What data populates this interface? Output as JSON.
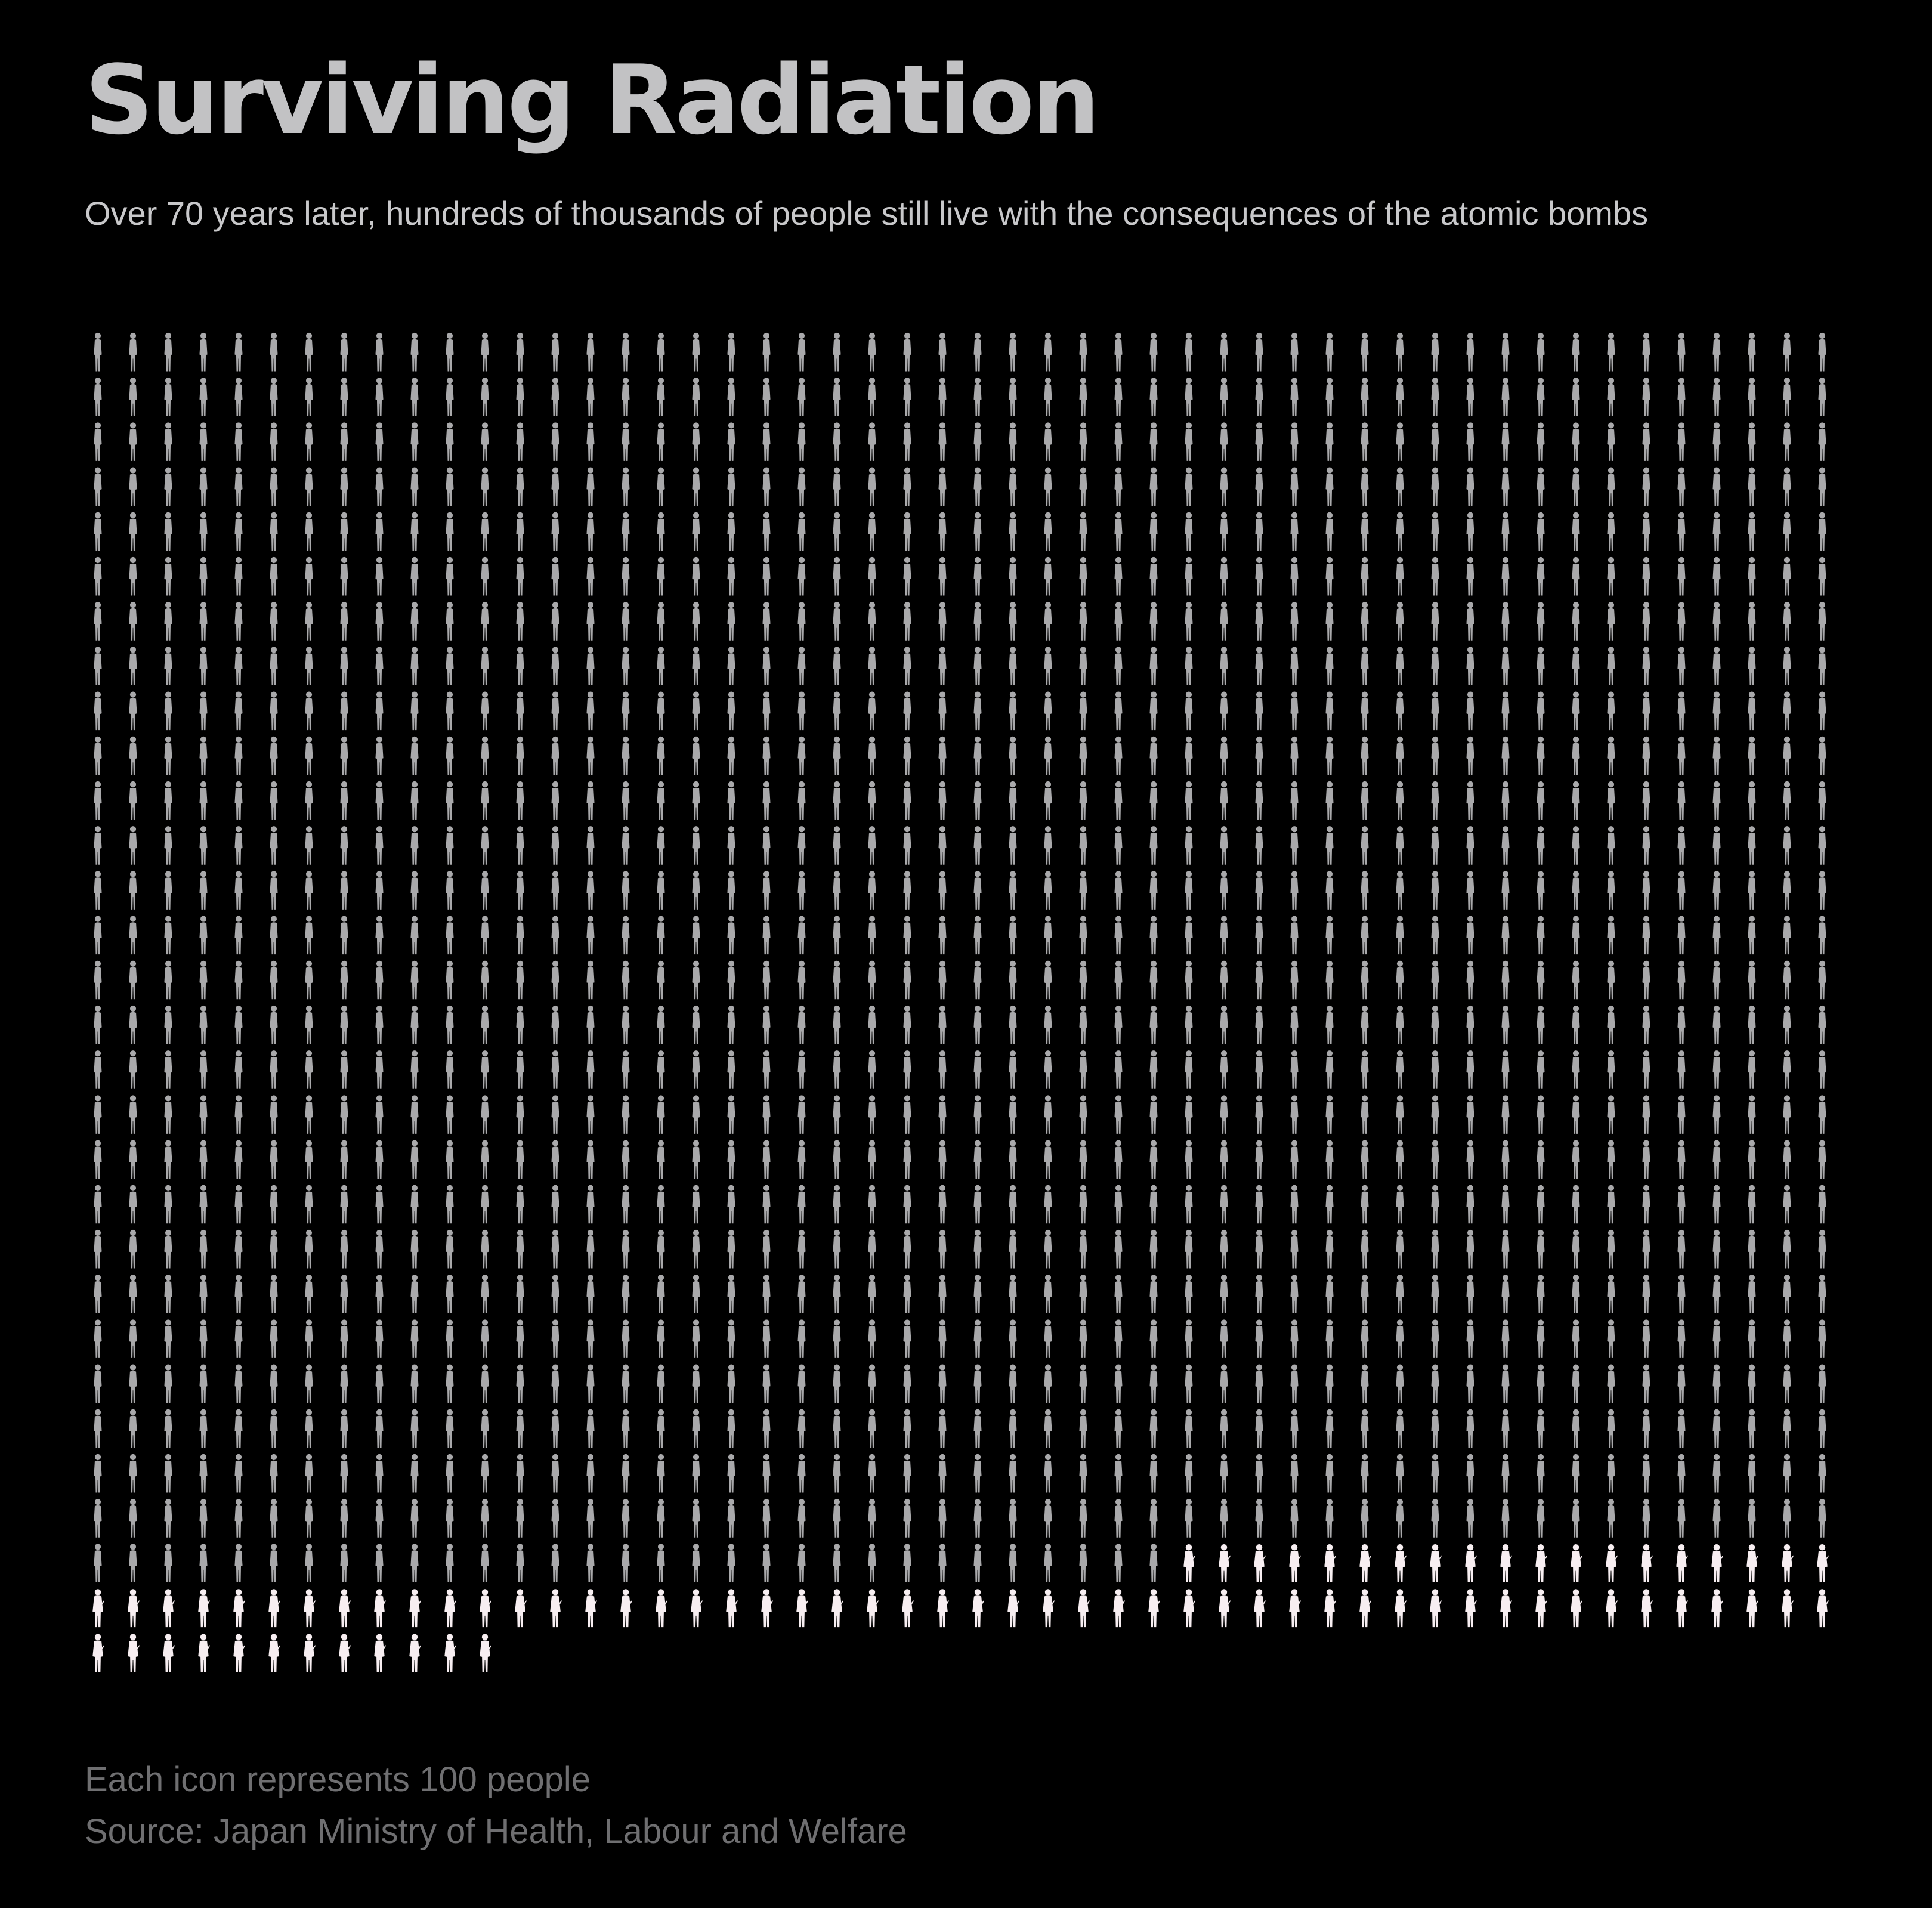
{
  "title": "Surviving Radiation",
  "subtitle": "Over 70 years later, hundreds of thousands of people still live with the consequences of the atomic bombs",
  "footer": {
    "note": "Each icon represents 100 people",
    "source": "Source: Japan Ministry of Health, Labour and Welfare"
  },
  "colors": {
    "background": "#000000",
    "icon_grey": "#a9a9ab",
    "icon_highlight": "#f7eef1"
  },
  "chart_data": {
    "type": "pictogram",
    "unit": "Each icon represents 100 people",
    "icons_per_row": 50,
    "icon_value": 100,
    "groups": [
      {
        "color": "#a9a9ab",
        "icons": 1381
      },
      {
        "color": "#f7eef1",
        "icons": 81
      }
    ]
  }
}
